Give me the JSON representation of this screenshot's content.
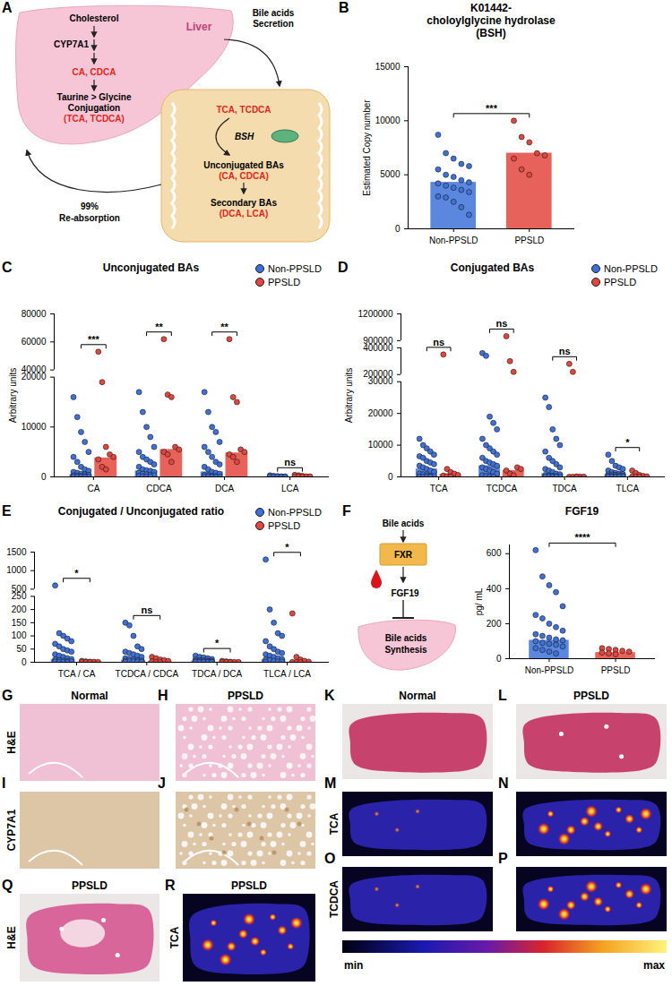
{
  "chart_data": [
    {
      "panel": "B",
      "type": "bar",
      "title": "K01442-\ncholoylglycine hydrolase\n(BSH)",
      "ylabel": "Estimated Copy number",
      "categories": [
        "Non-PPSLD",
        "PPSLD"
      ],
      "values": [
        4300,
        7000
      ],
      "colors": [
        "#3f72d9",
        "#e3463e"
      ],
      "points": [
        [
          8700,
          7000,
          6500,
          6000,
          5800,
          5500,
          5000,
          4800,
          4500,
          4300,
          4200,
          4000,
          3800,
          3600,
          3400,
          3000,
          2900,
          2500,
          2000,
          1300
        ],
        [
          10000,
          8500,
          8000,
          7000,
          6800,
          6500,
          5500,
          5000
        ]
      ],
      "significance": [
        "***"
      ],
      "ylim": [
        0,
        15000
      ],
      "yticks": [
        0,
        5000,
        10000,
        15000
      ],
      "grid": false
    },
    {
      "panel": "C",
      "type": "bar",
      "title": "Unconjugated BAs",
      "ylabel": "Arbitrary units",
      "categories": [
        "CA",
        "CDCA",
        "DCA",
        "LCA"
      ],
      "series": [
        {
          "name": "Non-PPSLD",
          "color": "#3f72d9",
          "values": [
            500,
            1200,
            1000,
            50
          ],
          "points": [
            [
              16000,
              12000,
              9000,
              7000,
              5000,
              4000,
              3000,
              2000,
              1500,
              1200,
              1000,
              800,
              600,
              500,
              400,
              300,
              200,
              150,
              100,
              80,
              50,
              30,
              20,
              10
            ],
            [
              17000,
              13000,
              10000,
              8000,
              6000,
              5000,
              4000,
              3500,
              3000,
              2500,
              2000,
              1500,
              1300,
              1200,
              1000,
              800,
              600,
              500,
              400,
              300,
              200,
              100,
              80,
              50
            ],
            [
              17000,
              13000,
              10000,
              9000,
              7000,
              6000,
              5000,
              4000,
              3000,
              2500,
              2000,
              1500,
              1000,
              800,
              600,
              400,
              300,
              200,
              100,
              50,
              30,
              20,
              10,
              5
            ],
            [
              300,
              200,
              150,
              100,
              80,
              60,
              50,
              40,
              30,
              20
            ]
          ]
        },
        {
          "name": "PPSLD",
          "color": "#e3463e",
          "values": [
            3800,
            5500,
            4800,
            80
          ],
          "points": [
            [
              53000,
              19000,
              6000,
              4500,
              4000,
              3500,
              2000,
              1500
            ],
            [
              62000,
              16500,
              16000,
              6000,
              5500,
              5000,
              4500,
              3000
            ],
            [
              62000,
              16000,
              15000,
              5500,
              5000,
              4500,
              4000,
              3000
            ],
            [
              400,
              300,
              200,
              100,
              80,
              60,
              50,
              40
            ]
          ]
        }
      ],
      "significance": [
        "***",
        "**",
        "**",
        "ns"
      ],
      "ylim": [
        0,
        80000
      ],
      "ybreak": [
        [
          20000,
          40000
        ]
      ],
      "yticks": [
        0,
        10000,
        20000,
        40000,
        60000,
        80000
      ],
      "legend": "top-right",
      "grid": false
    },
    {
      "panel": "D",
      "type": "bar",
      "title": "Conjugated BAs",
      "ylabel": "Arbitrary units",
      "categories": [
        "TCA",
        "TCDCA",
        "TDCA",
        "TLCA"
      ],
      "series": [
        {
          "name": "Non-PPSLD",
          "color": "#3f72d9",
          "values": [
            2500,
            3500,
            1000,
            800
          ],
          "points": [
            [
              12000,
              10000,
              9000,
              8000,
              7000,
              6500,
              6000,
              5000,
              4500,
              4000,
              3500,
              3000,
              2500,
              2000,
              1500,
              1000,
              800,
              500,
              300,
              200,
              100,
              50,
              20,
              10
            ],
            [
              360000,
              340000,
              19000,
              17000,
              15000,
              12000,
              10000,
              9000,
              8000,
              7000,
              6000,
              5000,
              4500,
              4000,
              3500,
              3000,
              2500,
              2000,
              1500,
              1000,
              500,
              300,
              100,
              50
            ],
            [
              25000,
              22000,
              15000,
              12000,
              10000,
              8000,
              6000,
              5000,
              4000,
              3000,
              2500,
              2000,
              1500,
              1000,
              800,
              600,
              400,
              300,
              200,
              100,
              50,
              30,
              20,
              10
            ],
            [
              7000,
              5000,
              3500,
              3000,
              2500,
              2000,
              1500,
              1200,
              1000,
              900,
              800,
              700,
              600,
              500,
              400,
              300,
              200,
              150,
              100,
              80,
              50,
              30,
              20,
              10
            ]
          ]
        },
        {
          "name": "PPSLD",
          "color": "#e3463e",
          "values": [
            800,
            2000,
            50,
            150
          ],
          "points": [
            [
              350000,
              2500,
              1500,
              1000,
              600,
              400,
              200,
              100
            ],
            [
              950000,
              300000,
              220000,
              3000,
              2500,
              2000,
              1000,
              500
            ],
            [
              280000,
              220000,
              100,
              50,
              40,
              30,
              20,
              10
            ],
            [
              2000,
              1200,
              600,
              300,
              150,
              100,
              50,
              20
            ]
          ]
        }
      ],
      "significance": [
        "ns",
        "ns",
        "ns",
        "*"
      ],
      "ylim": [
        0,
        1200000
      ],
      "ybreak": [
        [
          30000,
          200000
        ],
        [
          400000,
          900000
        ]
      ],
      "yticks": [
        0,
        10000,
        20000,
        30000,
        200000,
        400000,
        900000,
        1200000
      ],
      "legend": "top-right",
      "grid": false
    },
    {
      "panel": "E",
      "type": "bar",
      "title": "Conjugated / Unconjugated ratio",
      "categories": [
        "TCA / CA",
        "TCDCA / CDCA",
        "TDCA / DCA",
        "TLCA / LCA"
      ],
      "series": [
        {
          "name": "Non-PPSLD",
          "color": "#3f72d9",
          "values": [
            10,
            8,
            5,
            10
          ],
          "points": [
            [
              600,
              110,
              100,
              90,
              80,
              70,
              60,
              50,
              45,
              40,
              30,
              25,
              20,
              15,
              12,
              10,
              8,
              6,
              5,
              3,
              2,
              1,
              0.5,
              0.2
            ],
            [
              150,
              140,
              100,
              60,
              50,
              40,
              35,
              30,
              25,
              20,
              15,
              12,
              10,
              8,
              6,
              5,
              4,
              3,
              2,
              1,
              0.5
            ],
            [
              25,
              20,
              18,
              15,
              12,
              10,
              8,
              7,
              6,
              5,
              4,
              3,
              2.5,
              2,
              1.5,
              1,
              0.8,
              0.5,
              0.3,
              0.2
            ],
            [
              1300,
              200,
              150,
              110,
              100,
              80,
              60,
              50,
              40,
              35,
              30,
              25,
              20,
              15,
              12,
              10,
              8,
              5,
              3,
              2,
              1
            ]
          ]
        },
        {
          "name": "PPSLD",
          "color": "#e3463e",
          "values": [
            1,
            3,
            1,
            1
          ],
          "points": [
            [
              5,
              3,
              2,
              1.5,
              1,
              0.5,
              0.3,
              0.1
            ],
            [
              20,
              15,
              10,
              8,
              5,
              3,
              1,
              0.5
            ],
            [
              5,
              3,
              2,
              1,
              0.8,
              0.5,
              0.3,
              0.1
            ],
            [
              185,
              20,
              10,
              5,
              2,
              1,
              0.5,
              0.2
            ]
          ]
        }
      ],
      "significance": [
        "*",
        "ns",
        "*",
        "*"
      ],
      "ylim": [
        0,
        1500
      ],
      "ybreak": [
        [
          250,
          500
        ]
      ],
      "yticks": [
        0,
        50,
        100,
        150,
        200,
        250,
        500,
        1000,
        1500
      ],
      "legend": "top-right",
      "grid": false
    },
    {
      "panel": "F",
      "type": "bar",
      "title": "FGF19",
      "ylabel": "pg/ mL",
      "categories": [
        "Non-PPSLD",
        "PPSLD"
      ],
      "values": [
        105,
        35
      ],
      "colors": [
        "#3f72d9",
        "#e3463e"
      ],
      "points": [
        [
          620,
          470,
          420,
          380,
          300,
          250,
          230,
          200,
          180,
          160,
          140,
          130,
          120,
          110,
          105,
          100,
          90,
          85,
          80,
          70,
          60,
          50,
          40,
          30
        ],
        [
          60,
          55,
          50,
          45,
          40,
          35,
          30,
          25
        ]
      ],
      "significance": [
        "****"
      ],
      "ylim": [
        0,
        650
      ],
      "yticks": [
        0,
        200,
        400,
        600
      ],
      "grid": false
    }
  ],
  "diagrams": [
    {
      "panel": "A",
      "texts": {
        "cholesterol": "Cholesterol",
        "enzyme": "CYP7A1",
        "primary": "CA, CDCA",
        "conjugation_1": "Taurine > Glycine",
        "conjugation_2": "Conjugation",
        "conjugated": "(TCA, TCDCA)",
        "organ": "Liver",
        "secretion_1": "Bile acids",
        "secretion_2": "Secretion",
        "gut_conjugated": "TCA, TCDCA",
        "gut_enzyme": "BSH",
        "unconjugated_1": "Unconjugated BAs",
        "unconjugated_2": "(CA, CDCA)",
        "secondary_1": "Secondary BAs",
        "secondary_2": "(DCA, LCA)",
        "reabsorption_1": "99%",
        "reabsorption_2": "Re-absorption"
      }
    },
    {
      "panel": "F",
      "texts": {
        "top": "Bile acids",
        "receptor": "FXR",
        "hormone": "FGF19",
        "target_1": "Bile acids",
        "target_2": "Synthesis"
      }
    }
  ],
  "images": {
    "panels": [
      {
        "panel": "G",
        "title": "Normal",
        "row_label": "H&E"
      },
      {
        "panel": "H",
        "title": "PPSLD"
      },
      {
        "panel": "I",
        "row_label": "CYP7A1"
      },
      {
        "panel": "J"
      },
      {
        "panel": "K",
        "title": "Normal"
      },
      {
        "panel": "L",
        "title": "PPSLD"
      },
      {
        "panel": "M",
        "row_label": "TCA"
      },
      {
        "panel": "N"
      },
      {
        "panel": "O",
        "row_label": "TCDCA"
      },
      {
        "panel": "P"
      },
      {
        "panel": "Q",
        "title": "PPSLD",
        "row_label": "H&E"
      },
      {
        "panel": "R",
        "title": "PPSLD",
        "row_label": "TCA"
      }
    ],
    "colorbar": {
      "min": "min",
      "max": "max"
    }
  }
}
